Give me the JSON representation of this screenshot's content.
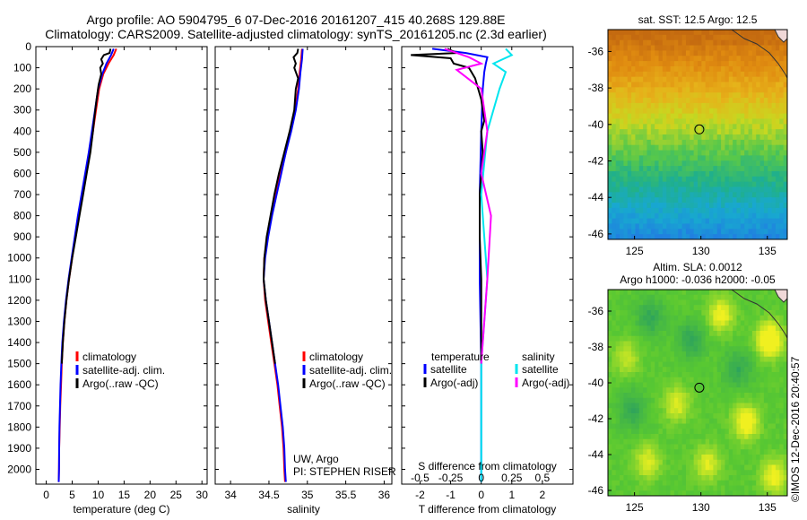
{
  "header": {
    "title_line1": "Argo profile: AO 5904795_6 07-Dec-2016 20161207_415 40.268S 129.88E",
    "title_line2": "Climatology: CARS2009. Satellite-adjusted climatology: synTS_20161205.nc (2.3d earlier)"
  },
  "stamp": "©IMOS 12-Dec-2016 20:40:57",
  "colors": {
    "climatology": "#ff0000",
    "satellite": "#0000ff",
    "argo": "#000000",
    "sal_satellite": "#00e5ee",
    "sal_argo": "#ff00ff"
  },
  "depth_ticks": [
    0,
    100,
    200,
    300,
    400,
    500,
    600,
    700,
    800,
    900,
    1000,
    1100,
    1200,
    1300,
    1400,
    1500,
    1600,
    1700,
    1800,
    1900,
    2000
  ],
  "chart_data": [
    {
      "id": "temperature",
      "type": "line",
      "xlabel": "temperature (deg C)",
      "ylabel": "",
      "xlim": [
        -2,
        31
      ],
      "ylim": [
        2070,
        0
      ],
      "x_ticks": [
        0,
        5,
        10,
        15,
        20,
        25,
        30
      ],
      "legend": {
        "placement": "lower-center",
        "entries": [
          "climatology",
          "satellite-adj. clim.",
          "Argo(..raw -QC)"
        ]
      },
      "series": [
        {
          "name": "climatology",
          "color": "#ff0000",
          "points": [
            [
              13.5,
              10
            ],
            [
              13.0,
              40
            ],
            [
              12.0,
              80
            ],
            [
              11.0,
              130
            ],
            [
              10.2,
              200
            ],
            [
              9.6,
              300
            ],
            [
              9.0,
              400
            ],
            [
              8.4,
              500
            ],
            [
              7.7,
              600
            ],
            [
              7.0,
              700
            ],
            [
              6.3,
              800
            ],
            [
              5.6,
              900
            ],
            [
              5.0,
              1000
            ],
            [
              4.4,
              1100
            ],
            [
              3.9,
              1200
            ],
            [
              3.5,
              1300
            ],
            [
              3.2,
              1400
            ],
            [
              3.0,
              1500
            ],
            [
              2.85,
              1600
            ],
            [
              2.7,
              1700
            ],
            [
              2.6,
              1800
            ],
            [
              2.5,
              1900
            ],
            [
              2.45,
              2000
            ],
            [
              2.4,
              2060
            ]
          ]
        },
        {
          "name": "satellite-adj. clim.",
          "color": "#0000ff",
          "points": [
            [
              13.0,
              10
            ],
            [
              12.5,
              40
            ],
            [
              11.6,
              80
            ],
            [
              10.8,
              130
            ],
            [
              10.0,
              200
            ],
            [
              9.4,
              300
            ],
            [
              8.8,
              400
            ],
            [
              8.2,
              500
            ],
            [
              7.5,
              600
            ],
            [
              6.8,
              700
            ],
            [
              6.1,
              800
            ],
            [
              5.5,
              900
            ],
            [
              4.9,
              1000
            ],
            [
              4.3,
              1100
            ],
            [
              3.8,
              1200
            ],
            [
              3.4,
              1300
            ],
            [
              3.1,
              1400
            ],
            [
              2.9,
              1500
            ],
            [
              2.75,
              1600
            ],
            [
              2.65,
              1700
            ],
            [
              2.55,
              1800
            ],
            [
              2.5,
              1900
            ],
            [
              2.45,
              2000
            ],
            [
              2.4,
              2060
            ]
          ]
        },
        {
          "name": "Argo(..raw -QC)",
          "color": "#000000",
          "points": [
            [
              12.4,
              10
            ],
            [
              12.2,
              30
            ],
            [
              11.1,
              40
            ],
            [
              10.6,
              60
            ],
            [
              10.9,
              80
            ],
            [
              10.4,
              100
            ],
            [
              10.6,
              130
            ],
            [
              10.1,
              180
            ],
            [
              9.7,
              250
            ],
            [
              9.3,
              330
            ],
            [
              9.0,
              400
            ],
            [
              8.5,
              500
            ],
            [
              7.8,
              600
            ],
            [
              7.1,
              700
            ],
            [
              6.4,
              800
            ],
            [
              5.7,
              900
            ],
            [
              5.0,
              1000
            ],
            [
              4.4,
              1100
            ],
            [
              3.9,
              1200
            ],
            [
              3.5,
              1300
            ],
            [
              3.2,
              1400
            ],
            [
              3.0,
              1500
            ]
          ]
        }
      ]
    },
    {
      "id": "salinity",
      "type": "line",
      "xlabel": "salinity",
      "ylabel": "",
      "xlim": [
        33.8,
        36.1
      ],
      "ylim": [
        2070,
        0
      ],
      "x_ticks": [
        34,
        34.5,
        35,
        35.5,
        36
      ],
      "annotations": [
        "UW, Argo",
        "PI: STEPHEN RISER"
      ],
      "legend": {
        "placement": "lower-center",
        "entries": [
          "climatology",
          "satellite-adj. clim.",
          "Argo(..raw -QC)"
        ]
      },
      "series": [
        {
          "name": "climatology",
          "color": "#ff0000",
          "points": [
            [
              34.93,
              10
            ],
            [
              34.92,
              60
            ],
            [
              34.9,
              120
            ],
            [
              34.88,
              200
            ],
            [
              34.84,
              300
            ],
            [
              34.78,
              400
            ],
            [
              34.72,
              500
            ],
            [
              34.65,
              600
            ],
            [
              34.59,
              700
            ],
            [
              34.53,
              800
            ],
            [
              34.48,
              900
            ],
            [
              34.44,
              1000
            ],
            [
              34.43,
              1100
            ],
            [
              34.45,
              1200
            ],
            [
              34.49,
              1300
            ],
            [
              34.53,
              1400
            ],
            [
              34.57,
              1500
            ],
            [
              34.61,
              1600
            ],
            [
              34.64,
              1700
            ],
            [
              34.67,
              1800
            ],
            [
              34.69,
              1900
            ],
            [
              34.7,
              2000
            ],
            [
              34.71,
              2060
            ]
          ]
        },
        {
          "name": "satellite-adj. clim.",
          "color": "#0000ff",
          "points": [
            [
              34.94,
              10
            ],
            [
              34.93,
              60
            ],
            [
              34.91,
              120
            ],
            [
              34.89,
              200
            ],
            [
              34.85,
              300
            ],
            [
              34.79,
              400
            ],
            [
              34.72,
              500
            ],
            [
              34.66,
              600
            ],
            [
              34.6,
              700
            ],
            [
              34.54,
              800
            ],
            [
              34.49,
              900
            ],
            [
              34.45,
              1000
            ],
            [
              34.43,
              1100
            ],
            [
              34.46,
              1200
            ],
            [
              34.5,
              1300
            ],
            [
              34.54,
              1400
            ],
            [
              34.58,
              1500
            ],
            [
              34.62,
              1600
            ],
            [
              34.65,
              1700
            ],
            [
              34.68,
              1800
            ],
            [
              34.7,
              1900
            ],
            [
              34.71,
              2000
            ],
            [
              34.72,
              2060
            ]
          ]
        },
        {
          "name": "Argo(..raw -QC)",
          "color": "#000000",
          "points": [
            [
              34.88,
              10
            ],
            [
              34.87,
              30
            ],
            [
              34.82,
              50
            ],
            [
              34.85,
              80
            ],
            [
              34.83,
              100
            ],
            [
              34.88,
              150
            ],
            [
              34.85,
              200
            ],
            [
              34.83,
              300
            ],
            [
              34.77,
              400
            ],
            [
              34.7,
              500
            ],
            [
              34.63,
              600
            ],
            [
              34.57,
              700
            ],
            [
              34.52,
              800
            ],
            [
              34.47,
              900
            ],
            [
              34.44,
              1000
            ],
            [
              34.43,
              1100
            ],
            [
              34.46,
              1200
            ],
            [
              34.5,
              1300
            ],
            [
              34.54,
              1400
            ],
            [
              34.58,
              1500
            ]
          ]
        }
      ]
    },
    {
      "id": "difference",
      "type": "line",
      "xlabel": "T difference from climatology",
      "xlabel_top": "S difference from climatology",
      "ylabel": "",
      "xlim": [
        -2.6,
        3.0
      ],
      "ylim": [
        2070,
        0
      ],
      "x_ticks": [
        -2,
        -1,
        0,
        1,
        2
      ],
      "x_ticks_top": [
        "-0.5",
        "-0.25",
        "0",
        "0.25",
        "0.5"
      ],
      "legend": {
        "placement": "lower-center",
        "group1": "temperature",
        "group2": "salinity",
        "entries": [
          "satellite",
          "Argo(-adj)",
          "satellite",
          "Argo(-adj)"
        ]
      },
      "series": [
        {
          "name": "satellite",
          "group": "temperature",
          "color": "#0000ff",
          "points": [
            [
              -1.6,
              10
            ],
            [
              -0.5,
              30
            ],
            [
              0.2,
              50
            ],
            [
              0.15,
              80
            ],
            [
              0.1,
              120
            ],
            [
              0.05,
              200
            ],
            [
              0.0,
              400
            ],
            [
              -0.05,
              700
            ],
            [
              -0.05,
              1100
            ],
            [
              0.0,
              1500
            ],
            [
              0.0,
              2060
            ]
          ]
        },
        {
          "name": "Argo(-adj)",
          "group": "temperature",
          "color": "#000000",
          "points": [
            [
              -1.1,
              10
            ],
            [
              -0.8,
              30
            ],
            [
              -2.3,
              40
            ],
            [
              -1.0,
              55
            ],
            [
              -0.9,
              80
            ],
            [
              -0.4,
              100
            ],
            [
              -0.2,
              150
            ],
            [
              0.0,
              250
            ],
            [
              0.1,
              350
            ],
            [
              0.0,
              400
            ],
            [
              0.05,
              500
            ],
            [
              -0.05,
              700
            ],
            [
              -0.05,
              900
            ],
            [
              0.0,
              1100
            ],
            [
              0.0,
              1500
            ]
          ]
        },
        {
          "name": "satellite",
          "group": "salinity",
          "color": "#00e5ee",
          "points": [
            [
              0.2,
              10
            ],
            [
              0.25,
              40
            ],
            [
              0.1,
              80
            ],
            [
              0.2,
              120
            ],
            [
              0.15,
              200
            ],
            [
              0.05,
              400
            ],
            [
              0.0,
              700
            ],
            [
              0.05,
              1100
            ],
            [
              0.0,
              1500
            ],
            [
              0.0,
              2060
            ]
          ]
        },
        {
          "name": "Argo(-adj)",
          "group": "salinity",
          "color": "#ff00ff",
          "points": [
            [
              -0.3,
              10
            ],
            [
              -0.1,
              50
            ],
            [
              0.0,
              80
            ],
            [
              -0.2,
              110
            ],
            [
              0.0,
              200
            ],
            [
              0.05,
              400
            ],
            [
              0.0,
              600
            ],
            [
              0.08,
              800
            ],
            [
              0.05,
              1100
            ],
            [
              0.0,
              1500
            ]
          ]
        }
      ]
    },
    {
      "id": "sst_map",
      "type": "heatmap",
      "title": "sat. SST: 12.5 Argo: 12.5",
      "xlim": [
        123,
        136.5
      ],
      "ylim": [
        -46.3,
        -34.8
      ],
      "x_ticks": [
        125,
        130,
        135
      ],
      "y_ticks": [
        -36,
        -38,
        -40,
        -42,
        -44,
        -46
      ],
      "marker": [
        129.88,
        -40.268
      ],
      "gradient": [
        "#c46a10",
        "#e08b10",
        "#e6b21a",
        "#c8d820",
        "#58c84a",
        "#20b08a",
        "#18a8d0",
        "#2080e0"
      ]
    },
    {
      "id": "sla_map",
      "type": "heatmap",
      "title_line1": "Altim. SLA: 0.0012",
      "title_line2": "Argo h1000: -0.036 h2000: -0.05",
      "xlim": [
        123,
        136.5
      ],
      "ylim": [
        -46.3,
        -34.8
      ],
      "x_ticks": [
        125,
        130,
        135
      ],
      "y_ticks": [
        -36,
        -38,
        -40,
        -42,
        -44,
        -46
      ],
      "marker": [
        129.88,
        -40.268
      ],
      "base_color": "#58c832",
      "blobs": [
        [
          131.5,
          -36.2,
          0.6
        ],
        [
          135.2,
          -37.6,
          0.9
        ],
        [
          128.2,
          -41.2,
          0.5
        ],
        [
          133.4,
          -42.2,
          0.7
        ],
        [
          126.0,
          -44.4,
          0.5
        ],
        [
          124.4,
          -38.6,
          0.4
        ],
        [
          130.5,
          -44.5,
          0.5
        ],
        [
          135.5,
          -45.2,
          0.6
        ]
      ],
      "dark_blobs": [
        [
          126.2,
          -36.4
        ],
        [
          132.8,
          -39.2
        ],
        [
          124.8,
          -41.5
        ],
        [
          129.3,
          -37.6
        ]
      ]
    }
  ]
}
